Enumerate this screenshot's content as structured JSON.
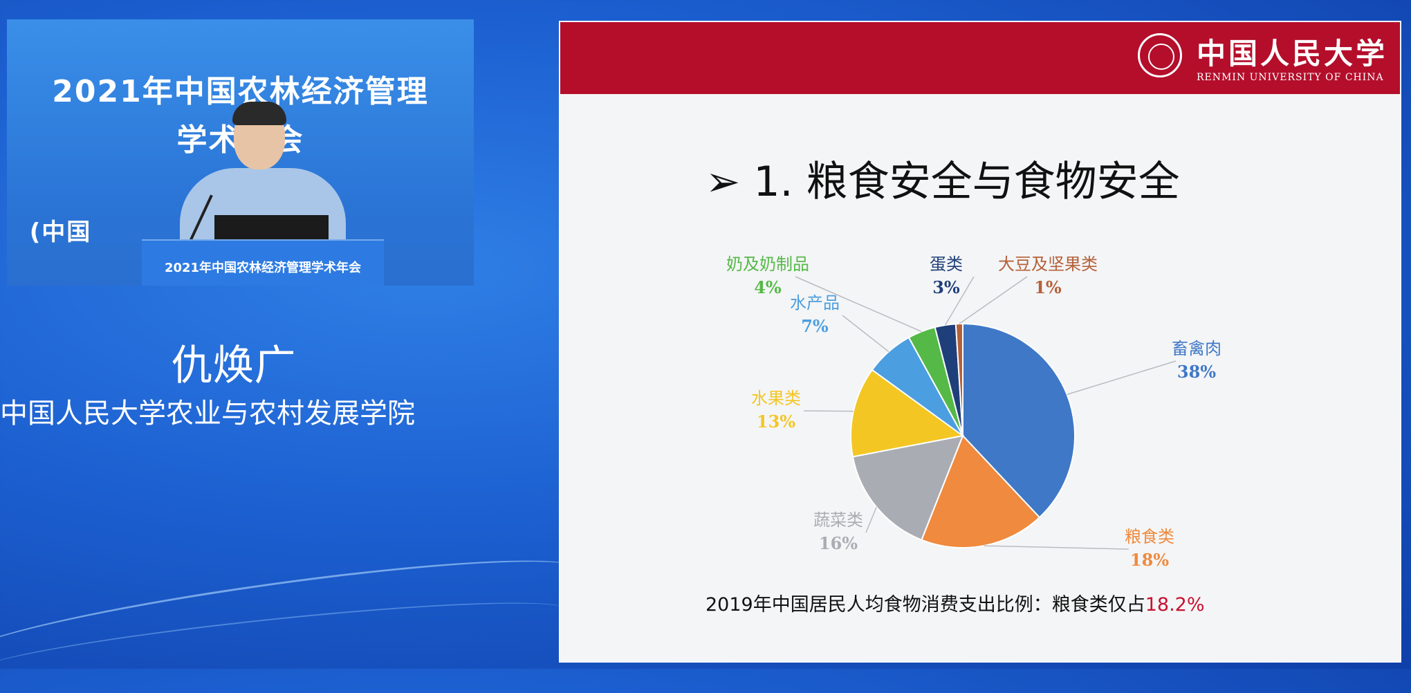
{
  "video": {
    "banner_line1": "2021年中国农林经济管理",
    "banner_line2": "学术年会",
    "banner_line3": "(中国",
    "podium_text": "2021年中国农林经济管理学术年会"
  },
  "speaker": {
    "name": "仇焕广",
    "affiliation": "中国人民大学农业与农村发展学院"
  },
  "slide": {
    "university_cn": "中国人民大学",
    "university_en": "RENMIN UNIVERSITY OF CHINA",
    "title": "➢ 1. 粮食安全与食物安全",
    "caption_prefix": "2019年中国居民人均食物消费支出比例：粮食类仅占",
    "caption_highlight": "18.2%"
  },
  "colors": {
    "header_red": "#b40e2b",
    "highlight_red": "#c8102e"
  },
  "chart_data": {
    "type": "pie",
    "title": "",
    "slices": [
      {
        "name": "畜禽肉",
        "value": 38,
        "label": "38%",
        "color": "#3f78c6"
      },
      {
        "name": "粮食类",
        "value": 18,
        "label": "18%",
        "color": "#ef8a3e"
      },
      {
        "name": "蔬菜类",
        "value": 16,
        "label": "16%",
        "color": "#a9adb3"
      },
      {
        "name": "水果类",
        "value": 13,
        "label": "13%",
        "color": "#f3c623"
      },
      {
        "name": "水产品",
        "value": 7,
        "label": "7%",
        "color": "#4b9ee0"
      },
      {
        "name": "奶及奶制品",
        "value": 4,
        "label": "4%",
        "color": "#55b948"
      },
      {
        "name": "蛋类",
        "value": 3,
        "label": "3%",
        "color": "#1f3f7a"
      },
      {
        "name": "大豆及坚果类",
        "value": 1,
        "label": "1%",
        "color": "#b4603a"
      }
    ]
  }
}
